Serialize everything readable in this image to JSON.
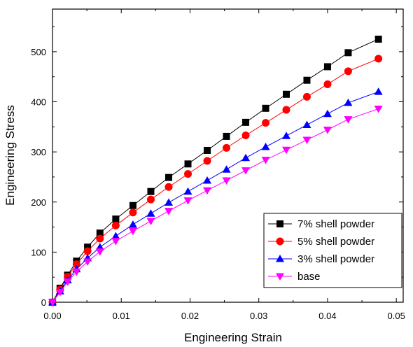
{
  "chart_data": {
    "type": "line",
    "title": "",
    "xlabel": "Engineering Strain",
    "ylabel": "Engineering Stress",
    "xlim": [
      0.0,
      0.051
    ],
    "ylim": [
      0,
      585
    ],
    "xticks": [
      0.0,
      0.01,
      0.02,
      0.03,
      0.04,
      0.05
    ],
    "xtick_labels": [
      "0.00",
      "0.01",
      "0.02",
      "0.03",
      "0.04",
      "0.05"
    ],
    "yticks": [
      0,
      100,
      200,
      300,
      400,
      500
    ],
    "ytick_labels": [
      "0",
      "100",
      "200",
      "300",
      "400",
      "500"
    ],
    "grid": false,
    "legend_position": "bottom-right",
    "series": [
      {
        "name": "7% shell powder",
        "marker": "square",
        "color": "#000000",
        "x": [
          0,
          0.0011,
          0.0022,
          0.0035,
          0.0051,
          0.0069,
          0.0092,
          0.0117,
          0.0143,
          0.0169,
          0.0197,
          0.0225,
          0.0253,
          0.0281,
          0.031,
          0.034,
          0.037,
          0.04,
          0.043,
          0.0474
        ],
        "y": [
          0,
          28,
          54,
          82,
          110,
          138,
          166,
          193,
          221,
          249,
          276,
          303,
          331,
          359,
          387,
          415,
          443,
          470,
          498,
          525
        ]
      },
      {
        "name": "5% shell powder",
        "marker": "circle",
        "color": "#ff0000",
        "x": [
          0,
          0.0011,
          0.0022,
          0.0035,
          0.0051,
          0.0069,
          0.0092,
          0.0117,
          0.0143,
          0.0169,
          0.0197,
          0.0225,
          0.0253,
          0.0281,
          0.031,
          0.034,
          0.037,
          0.04,
          0.043,
          0.0474
        ],
        "y": [
          0,
          25,
          51,
          76,
          102,
          127,
          153,
          179,
          205,
          230,
          256,
          282,
          308,
          333,
          358,
          384,
          410,
          435,
          461,
          486
        ]
      },
      {
        "name": "3% shell powder",
        "marker": "triangle-up",
        "color": "#0000ff",
        "x": [
          0,
          0.0011,
          0.0022,
          0.0035,
          0.0051,
          0.0069,
          0.0092,
          0.0117,
          0.0143,
          0.0169,
          0.0197,
          0.0225,
          0.0253,
          0.0281,
          0.031,
          0.034,
          0.037,
          0.04,
          0.043,
          0.0474
        ],
        "y": [
          0,
          22,
          44,
          66,
          88,
          110,
          132,
          155,
          177,
          199,
          221,
          243,
          265,
          288,
          310,
          332,
          354,
          376,
          398,
          420
        ]
      },
      {
        "name": "base",
        "marker": "triangle-down",
        "color": "#ff00ff",
        "x": [
          0,
          0.0011,
          0.0022,
          0.0035,
          0.0051,
          0.0069,
          0.0092,
          0.0117,
          0.0143,
          0.0169,
          0.0197,
          0.0225,
          0.0253,
          0.0281,
          0.031,
          0.034,
          0.037,
          0.04,
          0.043,
          0.0474
        ],
        "y": [
          0,
          20,
          41,
          61,
          81,
          101,
          122,
          142,
          162,
          182,
          203,
          223,
          243,
          263,
          284,
          304,
          324,
          344,
          365,
          386
        ]
      }
    ]
  }
}
